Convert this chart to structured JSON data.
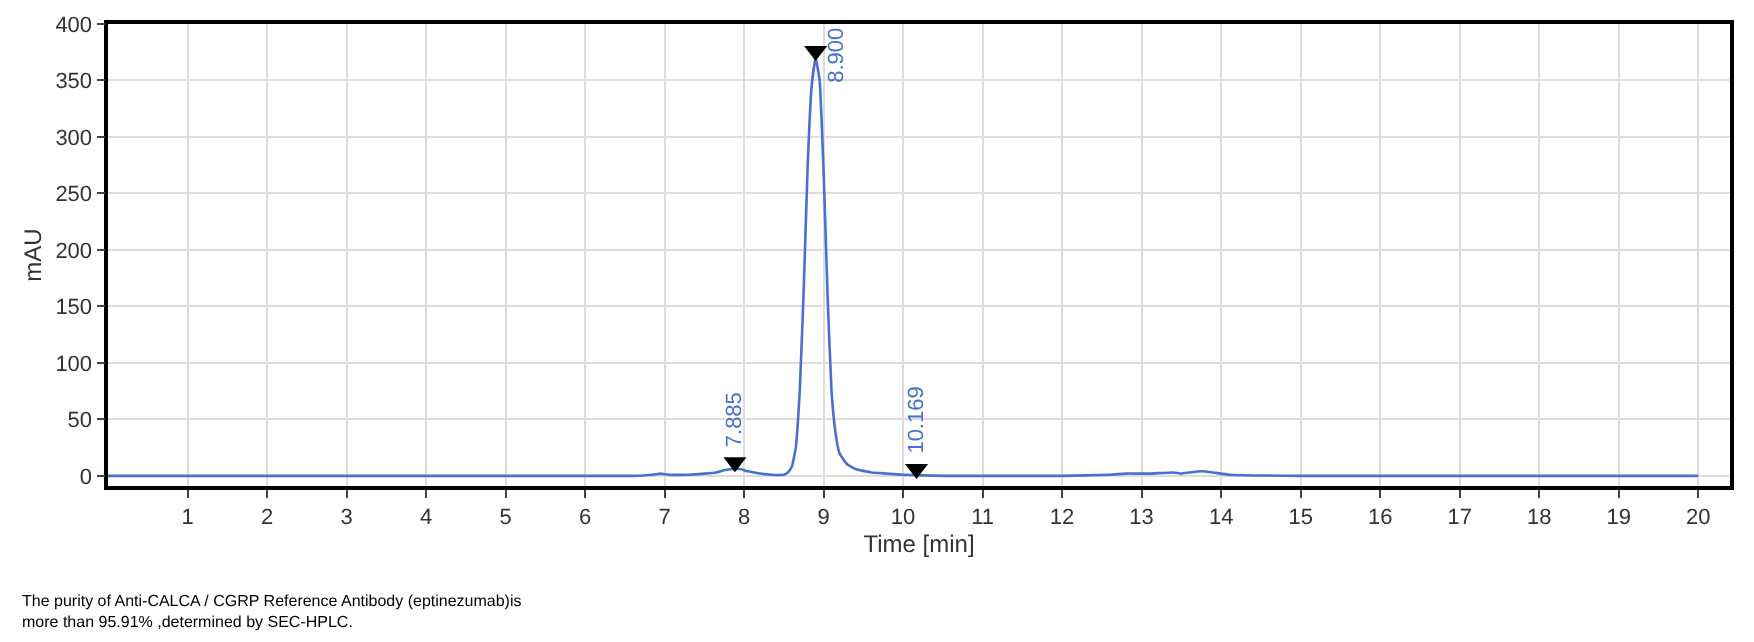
{
  "chart_data": {
    "type": "line",
    "xlabel": "Time [min]",
    "ylabel": "mAU",
    "xlim": [
      0,
      20.4
    ],
    "ylim": [
      -9,
      400
    ],
    "xticks": [
      1,
      2,
      3,
      4,
      5,
      6,
      7,
      8,
      9,
      10,
      11,
      12,
      13,
      14,
      15,
      16,
      17,
      18,
      19,
      20
    ],
    "yticks": [
      0,
      50,
      100,
      150,
      200,
      250,
      300,
      350,
      400
    ],
    "grid": true,
    "marker": "none",
    "line_style": "solid",
    "series": [
      {
        "color": "#4a6fd0",
        "x": [
          0,
          1,
          2,
          3,
          4,
          5,
          6,
          6.6,
          6.85,
          6.95,
          7.05,
          7.3,
          7.5,
          7.65,
          7.75,
          7.85,
          7.9,
          7.95,
          8.05,
          8.2,
          8.35,
          8.5,
          8.55,
          8.6,
          8.65,
          8.7,
          8.75,
          8.8,
          8.85,
          8.9,
          8.95,
          9.0,
          9.05,
          9.1,
          9.15,
          9.2,
          9.3,
          9.4,
          9.6,
          9.8,
          10.0,
          10.5,
          11,
          12,
          12.6,
          12.8,
          13.1,
          13.4,
          13.5,
          13.6,
          13.75,
          13.9,
          14.1,
          15,
          16,
          17,
          18,
          19,
          20
        ],
        "values": [
          0,
          0,
          0,
          0,
          0,
          0,
          0,
          0,
          1,
          2,
          1,
          1,
          2,
          3,
          5,
          6,
          6,
          6,
          4,
          2,
          1,
          1,
          3,
          8,
          25,
          75,
          165,
          275,
          345,
          370,
          350,
          270,
          160,
          75,
          38,
          20,
          10,
          6,
          3,
          2,
          1,
          0,
          0,
          0,
          1,
          2,
          2,
          3,
          2,
          3,
          4,
          3,
          1,
          0,
          0,
          0,
          0,
          0,
          0
        ]
      },
      {
        "type": "scatter",
        "marker": "triangle",
        "color": "#000000",
        "x": [
          7.885,
          8.9,
          10.169
        ],
        "values": [
          12,
          376,
          6
        ]
      }
    ],
    "annotations": [
      {
        "text": "7.885",
        "x": 7.885,
        "y": 12
      },
      {
        "text": "8.900",
        "x": 8.9,
        "y": 376
      },
      {
        "text": "10.169",
        "x": 10.169,
        "y": 6
      },
      "The purity of Anti-CALCA / CGRP Reference Antibody (eptinezumab)is\nmore than 95.91% ,determined by SEC-HPLC."
    ]
  }
}
